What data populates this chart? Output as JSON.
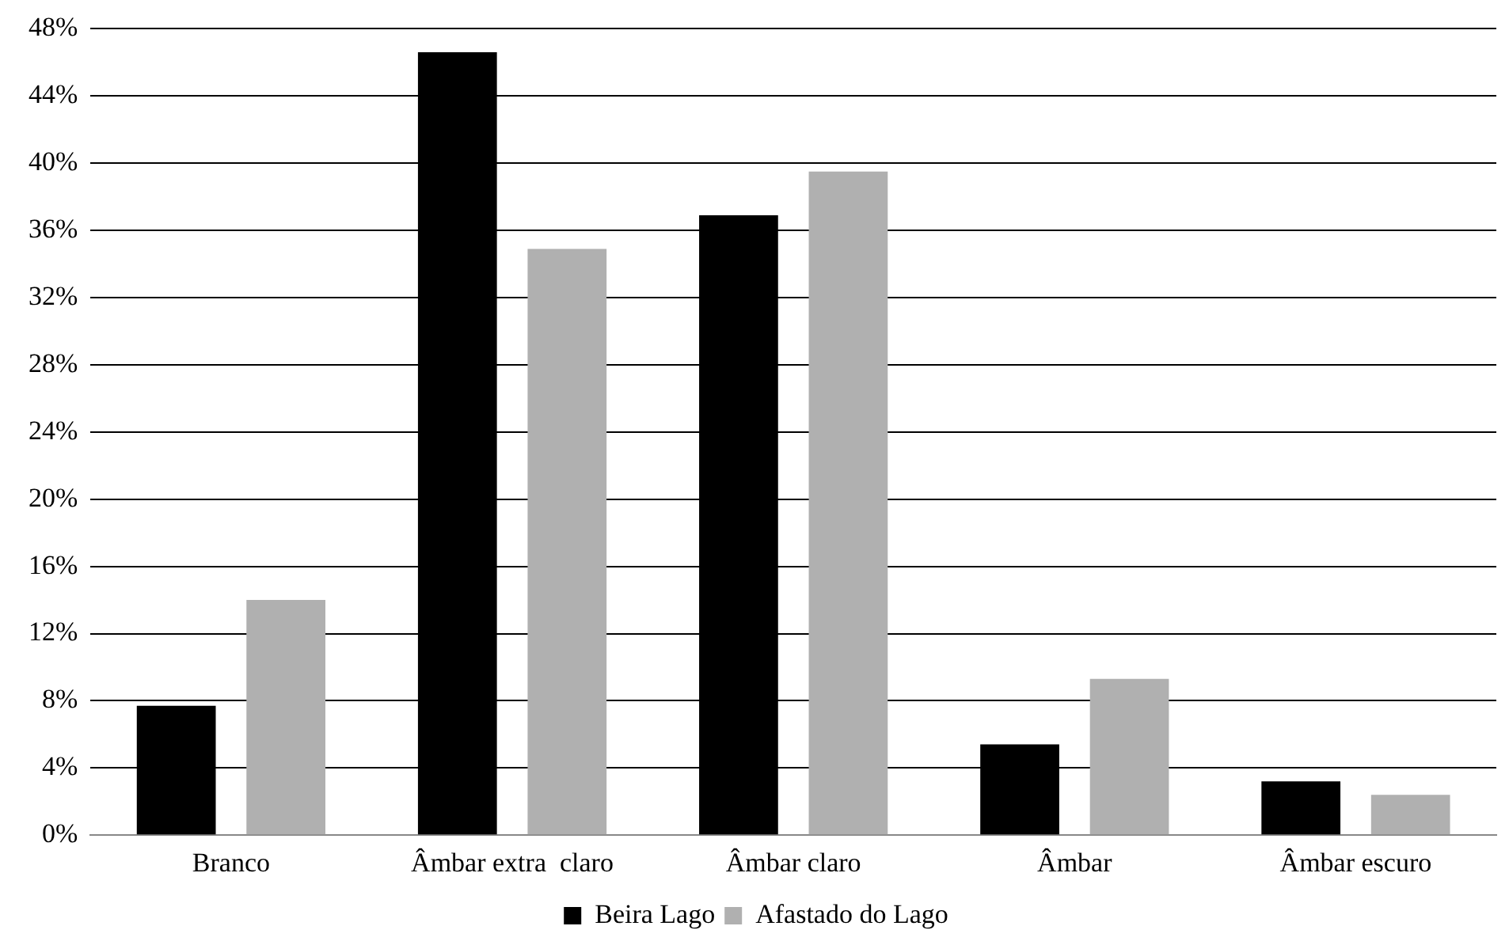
{
  "chart_data": {
    "type": "bar",
    "categories": [
      "Branco",
      "Âmbar extra  claro",
      "Âmbar claro",
      "Âmbar",
      "Âmbar escuro"
    ],
    "series": [
      {
        "name": "Beira Lago",
        "color": "#000000",
        "values": [
          7.7,
          46.6,
          36.9,
          5.4,
          3.2
        ]
      },
      {
        "name": "Afastado do Lago",
        "color": "#b0b0b0",
        "values": [
          14.0,
          34.9,
          39.5,
          9.3,
          2.4
        ]
      }
    ],
    "ylim": [
      0,
      48
    ],
    "yticks": [
      {
        "value": 0,
        "label": "0%"
      },
      {
        "value": 4,
        "label": "4%"
      },
      {
        "value": 8,
        "label": "8%"
      },
      {
        "value": 12,
        "label": "12%"
      },
      {
        "value": 16,
        "label": "16%"
      },
      {
        "value": 20,
        "label": "20%"
      },
      {
        "value": 24,
        "label": "24%"
      },
      {
        "value": 28,
        "label": "28%"
      },
      {
        "value": 32,
        "label": "32%"
      },
      {
        "value": 36,
        "label": "36%"
      },
      {
        "value": 40,
        "label": "40%"
      },
      {
        "value": 44,
        "label": "44%"
      },
      {
        "value": 48,
        "label": "48%"
      }
    ],
    "grid": "y",
    "legend": "bottom"
  }
}
